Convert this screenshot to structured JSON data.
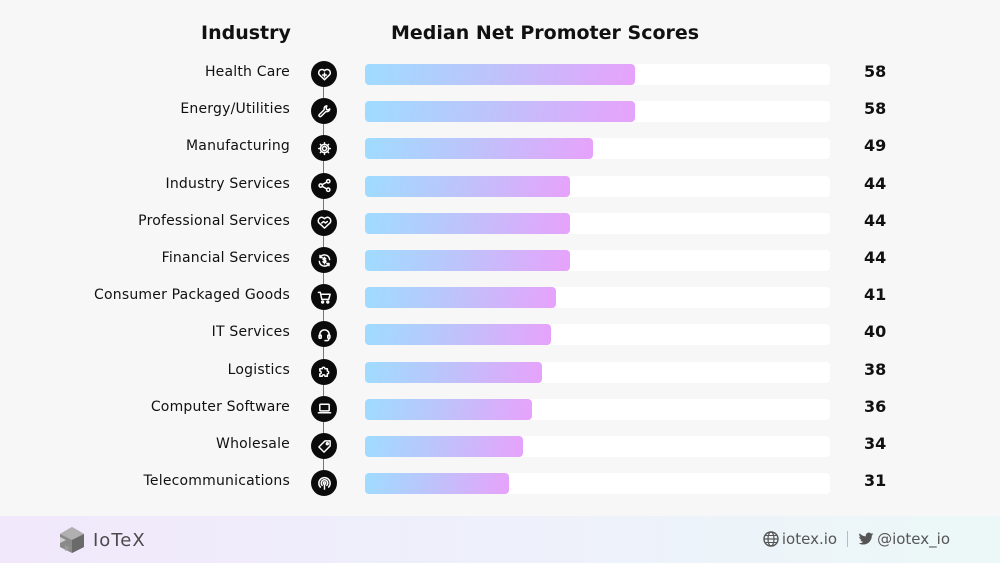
{
  "chart_data": {
    "type": "bar",
    "orientation": "horizontal",
    "title": "Median Net Promoter Scores",
    "category_header": "Industry",
    "categories": [
      "Health Care",
      "Energy/Utilities",
      "Manufacturing",
      "Industry Services",
      "Professional Services",
      "Financial Services",
      "Consumer Packaged Goods",
      "IT Services",
      "Logistics",
      "Computer Software",
      "Wholesale",
      "Telecommunications"
    ],
    "values": [
      58,
      58,
      49,
      44,
      44,
      44,
      41,
      40,
      38,
      36,
      34,
      31
    ],
    "icons": [
      "heart-plus-icon",
      "wrench-icon",
      "gear-icon",
      "share-icon",
      "handshake-heart-icon",
      "dollar-cycle-icon",
      "shopping-cart-icon",
      "headset-icon",
      "puzzle-icon",
      "laptop-icon",
      "price-tag-icon",
      "broadcast-icon"
    ],
    "xlim": [
      0,
      100
    ],
    "xlabel": "",
    "ylabel": "",
    "grid": false,
    "legend": "none"
  },
  "colors": {
    "bar_gradient_start": "#9fdcff",
    "bar_gradient_end": "#e7a2fb",
    "track": "#ffffff",
    "icon_bg": "#0b0b0b"
  },
  "footer": {
    "brand": "IoTeX",
    "website": "iotex.io",
    "twitter": "@iotex_io"
  }
}
